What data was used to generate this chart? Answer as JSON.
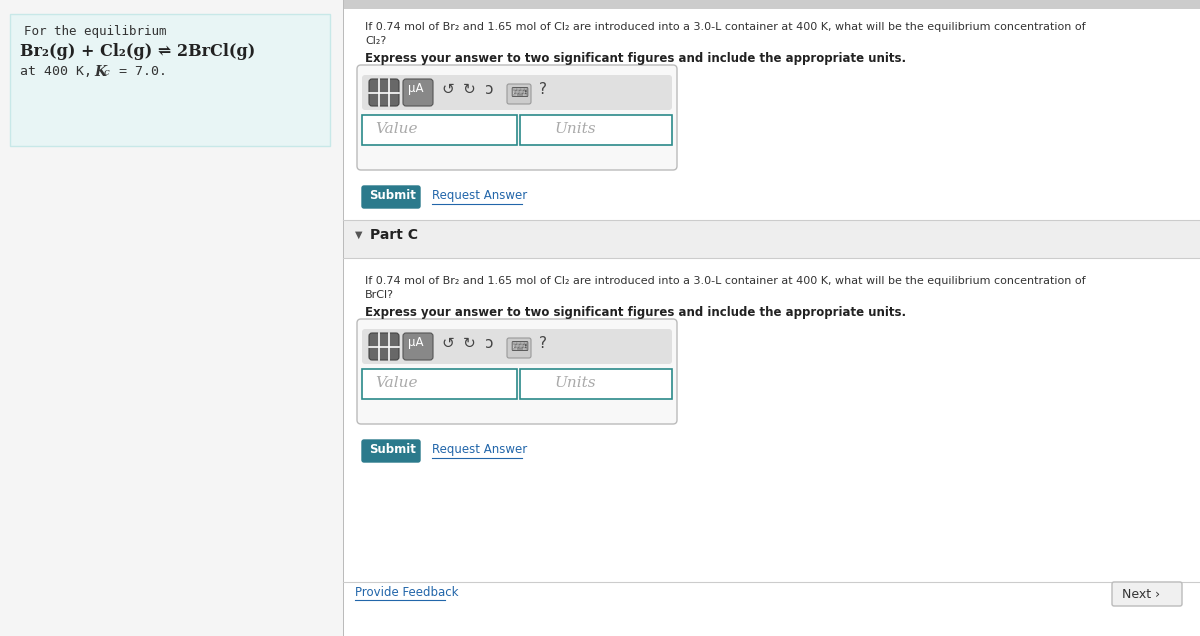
{
  "bg_color": "#f5f5f5",
  "left_panel_bg": "#e8f5f5",
  "left_panel_border": "#c8e8e8",
  "right_bg": "#ffffff",
  "toolbar_bg": "#e8e8e8",
  "teal_btn": "#2b7a8c",
  "teal_btn_text": "#ffffff",
  "link_color": "#2266aa",
  "divider_color": "#cccccc",
  "partc_bg": "#eeeeee",
  "partc_border": "#cccccc",
  "field_border": "#2b8888",
  "icon_dark": "#666666",
  "icon_darker": "#555555",
  "icon_btn_bg": "#777777",
  "icon_btn_bg2": "#888888",
  "left_title": "For the equilibrium",
  "left_eq": "Br₂(g) + Cl₂(g) ⇌ 2BrCl(g)",
  "left_at": "at 400 K,  K",
  "left_sub": "c",
  "left_kval": " = 7.0.",
  "q_b_text1": "If 0.74 mol of Br₂ and 1.65 mol of Cl₂ are introduced into a 3.0-L container at 400 K, what will be the equilibrium concentration of",
  "q_b_text2": "Cl₂?",
  "q_c_text1": "If 0.74 mol of Br₂ and 1.65 mol of Cl₂ are introduced into a 3.0-L container at 400 K, what will be the equilibrium concentration of",
  "q_c_text2": "BrCl?",
  "express": "Express your answer to two significant figures and include the appropriate units.",
  "val_ph": "Value",
  "units_ph": "Units",
  "submit": "Submit",
  "req_ans": "Request Answer",
  "part_c": "Part C",
  "feedback": "Provide Feedback",
  "next": "Next ›",
  "top_bar_color": "#cccccc",
  "separator_color": "#dddddd"
}
